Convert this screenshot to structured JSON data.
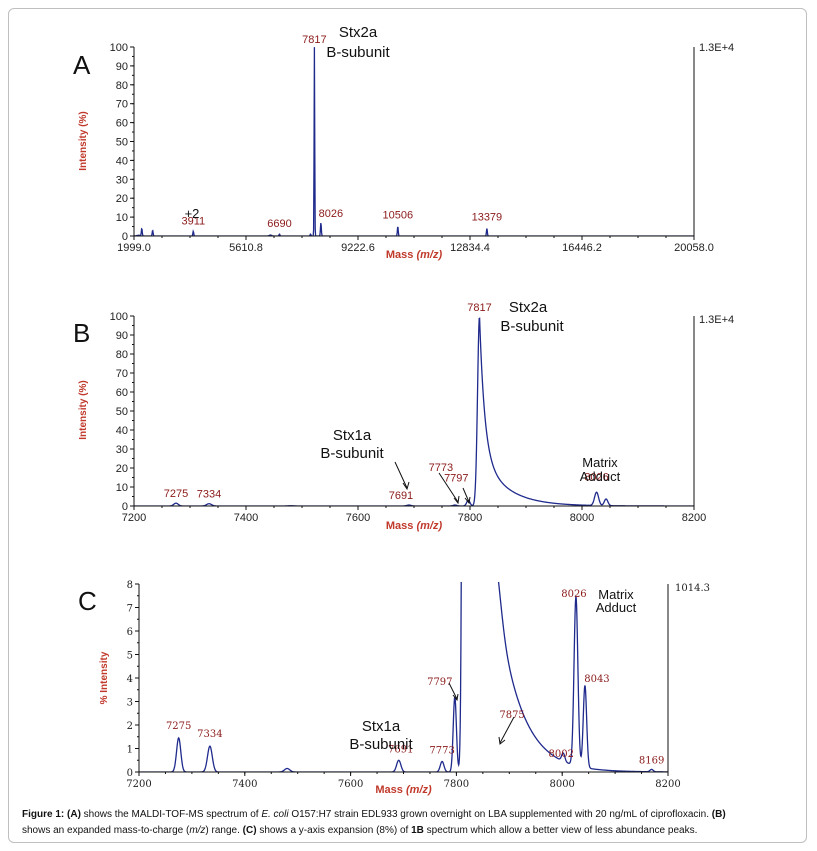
{
  "chart_data": [
    {
      "panel": "A",
      "type": "line",
      "xlabel": "Mass",
      "xlabel_unit": "(m/z)",
      "ylabel": "Intensity (%)",
      "xlim": [
        1999.0,
        20058.0
      ],
      "ylim": [
        0,
        100
      ],
      "x_ticks": [
        "1999.0",
        "5610.8",
        "9222.6",
        "12834.4",
        "16446.2",
        "20058.0"
      ],
      "y_ticks": [
        "0",
        "10",
        "20",
        "30",
        "40",
        "50",
        "60",
        "70",
        "80",
        "90",
        "100"
      ],
      "max_intensity_label": "1.3E+4",
      "peaks": [
        {
          "x": 2250,
          "y": 4,
          "label": ""
        },
        {
          "x": 2600,
          "y": 3,
          "label": ""
        },
        {
          "x": 3911,
          "y": 2.5,
          "label": "3911"
        },
        {
          "x": 6690,
          "y": 1,
          "label": "6690"
        },
        {
          "x": 7691,
          "y": 1,
          "label": ""
        },
        {
          "x": 7817,
          "y": 100,
          "label": "7817"
        },
        {
          "x": 8026,
          "y": 7,
          "label": "8026"
        },
        {
          "x": 10506,
          "y": 5,
          "label": "10506"
        },
        {
          "x": 13379,
          "y": 4,
          "label": "13379"
        }
      ],
      "annotations": {
        "main": [
          "Stx2a",
          "B-subunit"
        ],
        "charge": "+2"
      }
    },
    {
      "panel": "B",
      "type": "line",
      "xlabel": "Mass",
      "xlabel_unit": "(m/z)",
      "ylabel": "Intensity (%)",
      "xlim": [
        7200,
        8200
      ],
      "ylim": [
        0,
        100
      ],
      "x_ticks": [
        "7200",
        "7400",
        "7600",
        "7800",
        "8000",
        "8200"
      ],
      "y_ticks": [
        "0",
        "10",
        "20",
        "30",
        "40",
        "50",
        "60",
        "70",
        "80",
        "90",
        "100"
      ],
      "max_intensity_label": "1.3E+4",
      "peaks": [
        {
          "x": 7275,
          "y": 1.5,
          "label": "7275"
        },
        {
          "x": 7334,
          "y": 1.2,
          "label": "7334"
        },
        {
          "x": 7691,
          "y": 0.5,
          "label": "7691"
        },
        {
          "x": 7773,
          "y": 0.5,
          "label": "7773"
        },
        {
          "x": 7797,
          "y": 3,
          "label": "7797"
        },
        {
          "x": 7817,
          "y": 100,
          "label": "7817"
        },
        {
          "x": 8026,
          "y": 7,
          "label": "8026"
        },
        {
          "x": 8043,
          "y": 4,
          "label": ""
        }
      ],
      "annotations": {
        "main": [
          "Stx2a",
          "B-subunit"
        ],
        "minor": [
          "Stx1a",
          "B-subunit"
        ],
        "adduct": [
          "Matrix",
          "Adduct"
        ]
      }
    },
    {
      "panel": "C",
      "type": "line",
      "xlabel": "Mass",
      "xlabel_unit": "(m/z)",
      "ylabel": "% Intensity",
      "xlim": [
        7200,
        8200
      ],
      "ylim": [
        0,
        8
      ],
      "x_ticks": [
        "7200",
        "7400",
        "7600",
        "7800",
        "8000",
        "8200"
      ],
      "y_ticks": [
        "0",
        "1",
        "2",
        "3",
        "4",
        "5",
        "6",
        "7",
        "8"
      ],
      "max_intensity_label": "1014.3",
      "peaks": [
        {
          "x": 7275,
          "y": 1.45,
          "label": "7275"
        },
        {
          "x": 7334,
          "y": 1.1,
          "label": "7334"
        },
        {
          "x": 7691,
          "y": 0.5,
          "label": "7691"
        },
        {
          "x": 7773,
          "y": 0.45,
          "label": "7773"
        },
        {
          "x": 7797,
          "y": 3.2,
          "label": "7797"
        },
        {
          "x": 7875,
          "y": 1.2,
          "label": "7875"
        },
        {
          "x": 8002,
          "y": 0.35,
          "label": "8002"
        },
        {
          "x": 8026,
          "y": 7.2,
          "label": "8026"
        },
        {
          "x": 8043,
          "y": 3.5,
          "label": "8043"
        },
        {
          "x": 8169,
          "y": 0.1,
          "label": "8169"
        }
      ],
      "annotations": {
        "minor": [
          "Stx1a",
          "B-subunit"
        ],
        "adduct": [
          "Matrix",
          "Adduct"
        ]
      }
    }
  ],
  "panel_labels": [
    "A",
    "B",
    "C"
  ],
  "caption": {
    "figure_label": "Figure 1:",
    "line1_parts": [
      "(A)",
      " shows the MALDI-TOF-MS spectrum of ",
      "E. coli",
      " O157:H7 strain EDL933 grown overnight on LBA supplemented with 20 ng/mL of ciprofloxacin. ",
      "(B)"
    ],
    "line2_parts": [
      "shows an expanded mass-to-charge (",
      "m/z",
      ") range. ",
      "(C)",
      " shows a y-axis expansion (8%) of ",
      "1B",
      " spectrum which allow a better view of less abundance peaks."
    ]
  },
  "colors": {
    "line": "#1f2a8c",
    "axis": "#111111",
    "axis_label": "#c0392b",
    "peak_label": "#8b1a1a"
  }
}
